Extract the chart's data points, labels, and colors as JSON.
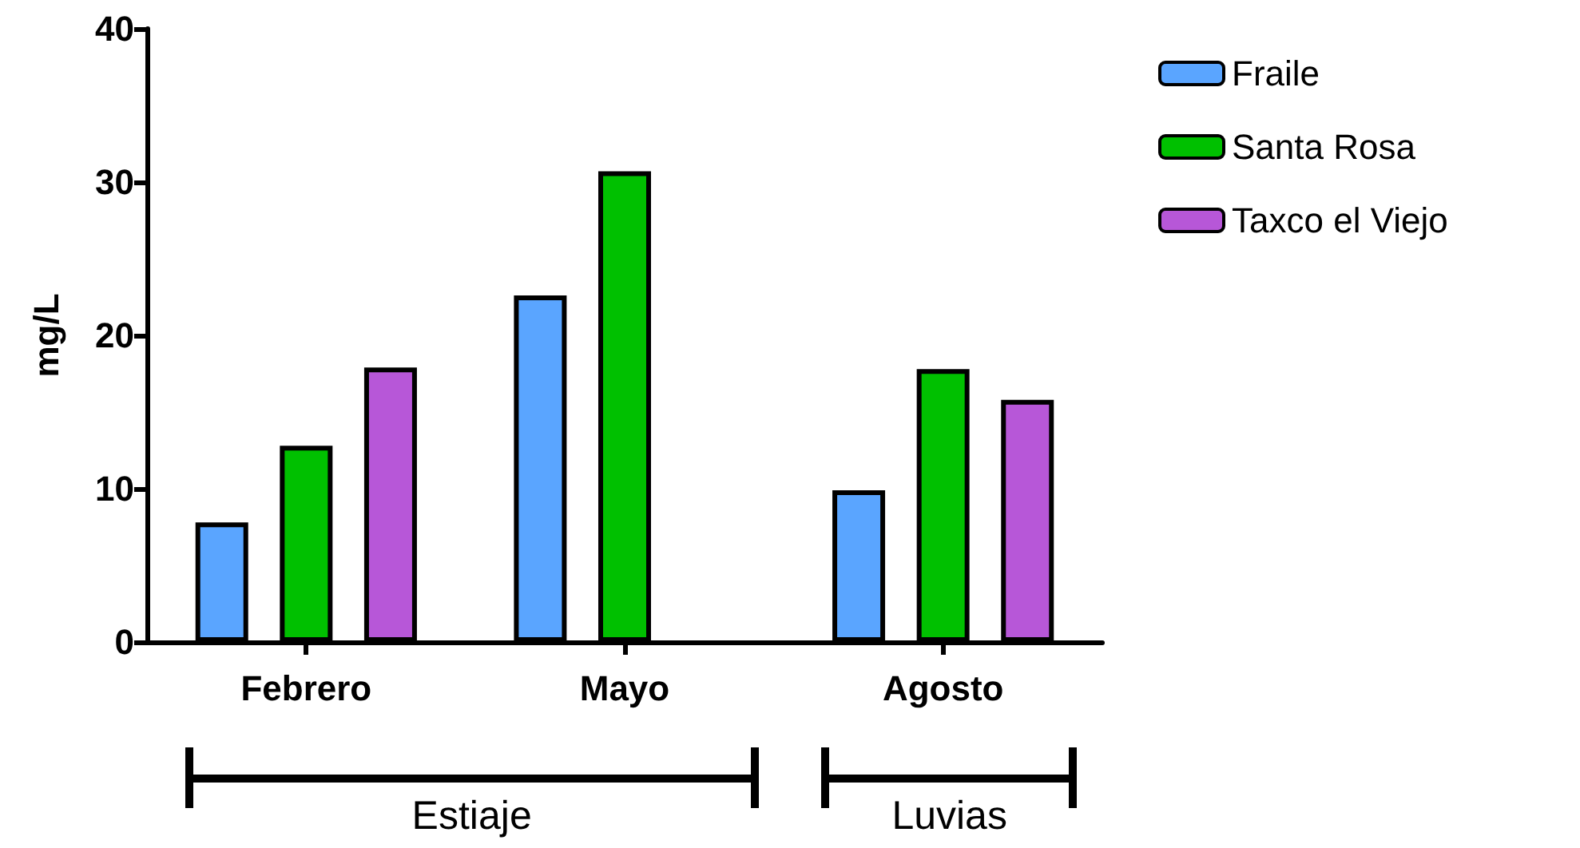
{
  "chart_data": {
    "type": "bar",
    "ylabel": "mg/L",
    "categories": [
      "Febrero",
      "Mayo",
      "Agosto"
    ],
    "series": [
      {
        "name": "Fraile",
        "color": "#5aa5ff",
        "values": [
          7.8,
          22.6,
          9.9
        ]
      },
      {
        "name": "Santa Rosa",
        "color": "#00c000",
        "values": [
          12.8,
          30.7,
          17.8
        ]
      },
      {
        "name": "Taxco el Viejo",
        "color": "#b757d8",
        "values": [
          17.9,
          null,
          15.8
        ]
      }
    ],
    "ylim": [
      0,
      40
    ],
    "yticks": [
      0,
      10,
      20,
      30,
      40
    ],
    "grid": false,
    "legend": "top right",
    "annotations": [
      "Estiaje",
      "Luvias"
    ]
  }
}
